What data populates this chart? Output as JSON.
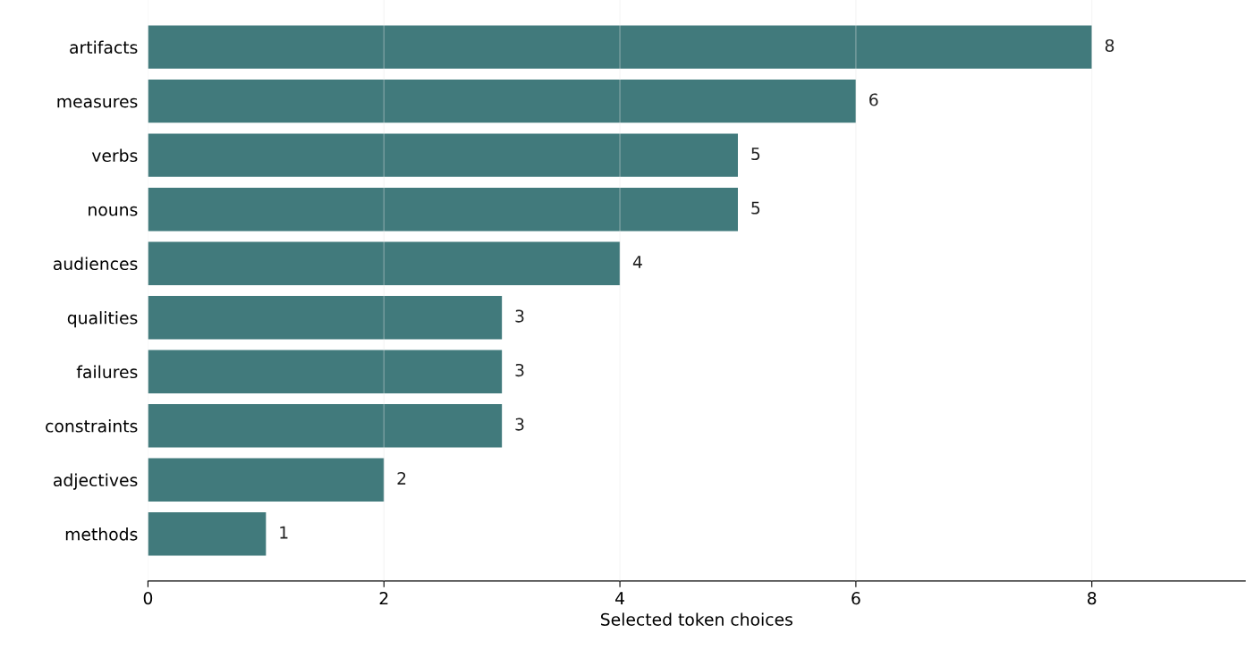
{
  "chart_data": {
    "type": "bar",
    "orientation": "horizontal",
    "xlabel": "Selected token choices",
    "categories": [
      "artifacts",
      "measures",
      "verbs",
      "nouns",
      "audiences",
      "qualities",
      "failures",
      "constraints",
      "adjectives",
      "methods"
    ],
    "values": [
      8,
      6,
      5,
      5,
      4,
      3,
      3,
      3,
      2,
      1
    ],
    "color": "#417a7c",
    "xlim": [
      0,
      9.3
    ],
    "xticks": [
      0,
      2,
      4,
      6,
      8
    ],
    "grid": "x",
    "data_labels": true
  }
}
